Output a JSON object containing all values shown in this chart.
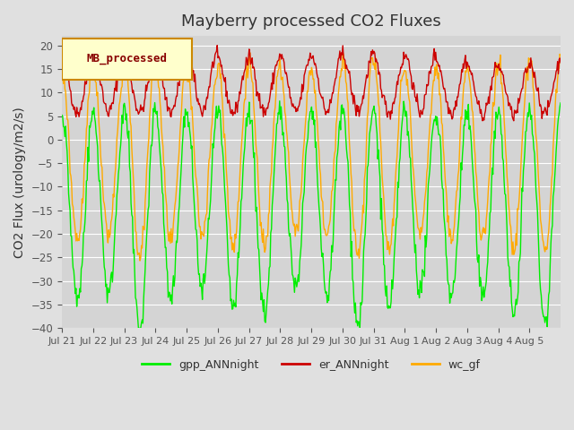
{
  "title": "Mayberry processed CO2 Fluxes",
  "ylabel": "CO2 Flux (urology/m2/s)",
  "ylim": [
    -40,
    22
  ],
  "yticks": [
    -40,
    -35,
    -30,
    -25,
    -20,
    -15,
    -10,
    -5,
    0,
    5,
    10,
    15,
    20
  ],
  "background_color": "#e0e0e0",
  "plot_bg_color": "#d4d4d4",
  "legend_label": "MB_processed",
  "legend_bg": "#ffffcc",
  "legend_border": "#cc8800",
  "legend_text_color": "#880000",
  "series": {
    "gpp": {
      "color": "#00ee00",
      "label": "gpp_ANNnight"
    },
    "er": {
      "color": "#cc0000",
      "label": "er_ANNnight"
    },
    "wc": {
      "color": "#ffaa00",
      "label": "wc_gf"
    }
  },
  "xtick_labels": [
    "Jul 21",
    "Jul 22",
    "Jul 23",
    "Jul 24",
    "Jul 25",
    "Jul 26",
    "Jul 27",
    "Jul 28",
    "Jul 29",
    "Jul 30",
    "Jul 31",
    "Aug 1",
    "Aug 2",
    "Aug 3",
    "Aug 4",
    "Aug 5"
  ],
  "n_points": 672,
  "days": 16
}
